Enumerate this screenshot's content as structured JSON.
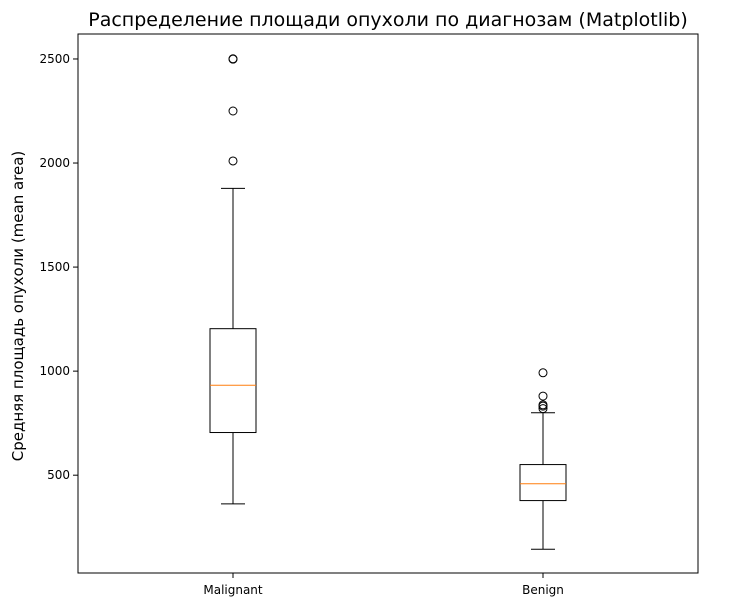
{
  "chart_data": {
    "type": "box",
    "title": "Распределение площади опухоли по диагнозам (Matplotlib)",
    "xlabel": "",
    "ylabel": "Средняя площадь опухоли (mean area)",
    "categories": [
      "Malignant",
      "Benign"
    ],
    "ylim": [
      30,
      2620
    ],
    "yticks": [
      500,
      1000,
      1500,
      2000,
      2500
    ],
    "grid": false,
    "colors": {
      "box": "#000000",
      "median": "#ff7f0e",
      "axes": "#000000"
    },
    "boxes": [
      {
        "category": "Malignant",
        "whisker_low": 362,
        "q1": 705,
        "median": 932,
        "q3": 1204,
        "whisker_high": 1878,
        "outliers": [
          2010,
          2250,
          2499,
          2501
        ]
      },
      {
        "category": "Benign",
        "whisker_low": 144,
        "q1": 378,
        "median": 459,
        "q3": 551,
        "whisker_high": 800,
        "outliers": [
          820,
          832,
          838,
          880,
          992
        ]
      }
    ]
  }
}
